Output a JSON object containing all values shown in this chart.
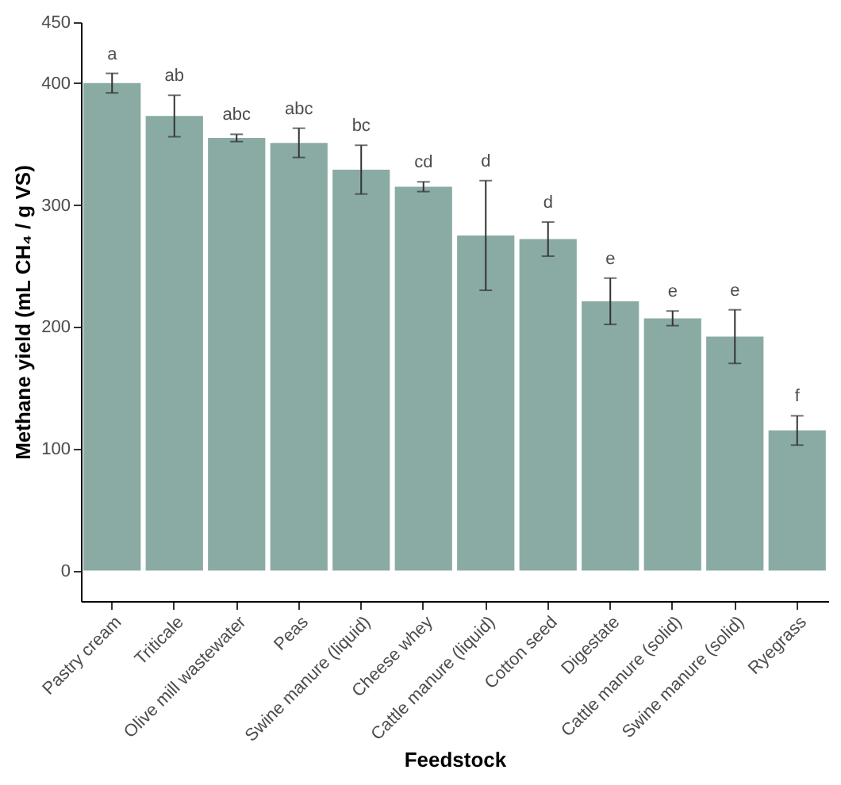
{
  "chart_data": {
    "type": "bar",
    "xlabel": "Feedstock",
    "ylabel": "Methane yield (mL CH₄ / g VS)",
    "categories": [
      "Pastry cream",
      "Triticale",
      "Olive mill wastewater",
      "Peas",
      "Swine manure (liquid)",
      "Cheese whey",
      "Cattle manure (liquid)",
      "Cotton seed",
      "Digestate",
      "Cattle manure (solid)",
      "Swine manure  (solid)",
      "Ryegrass"
    ],
    "values": [
      400,
      373,
      355,
      351,
      329,
      315,
      275,
      272,
      221,
      207,
      192,
      115
    ],
    "errors": [
      8,
      17,
      3,
      12,
      20,
      4,
      45,
      14,
      19,
      6,
      22,
      12
    ],
    "color": "#8aaba4",
    "ylim": [
      -25,
      450
    ],
    "yticks": [
      0,
      100,
      200,
      300,
      400,
      450
    ],
    "grid": false,
    "annotations": [
      {
        "text": "a",
        "x": "Pastry cream",
        "y": 408
      },
      {
        "text": "ab",
        "x": "Triticale",
        "y": 390
      },
      {
        "text": "abc",
        "x": "Olive mill wastewater",
        "y": 358
      },
      {
        "text": "abc",
        "x": "Peas",
        "y": 363
      },
      {
        "text": "bc",
        "x": "Swine manure (liquid)",
        "y": 349
      },
      {
        "text": "cd",
        "x": "Cheese whey",
        "y": 319
      },
      {
        "text": "d",
        "x": "Cattle manure (liquid)",
        "y": 320
      },
      {
        "text": "d",
        "x": "Cotton seed",
        "y": 286
      },
      {
        "text": "e",
        "x": "Digestate",
        "y": 240
      },
      {
        "text": "e",
        "x": "Cattle manure (solid)",
        "y": 213
      },
      {
        "text": "e",
        "x": "Swine manure  (solid)",
        "y": 214
      },
      {
        "text": "f",
        "x": "Ryegrass",
        "y": 127
      }
    ]
  }
}
